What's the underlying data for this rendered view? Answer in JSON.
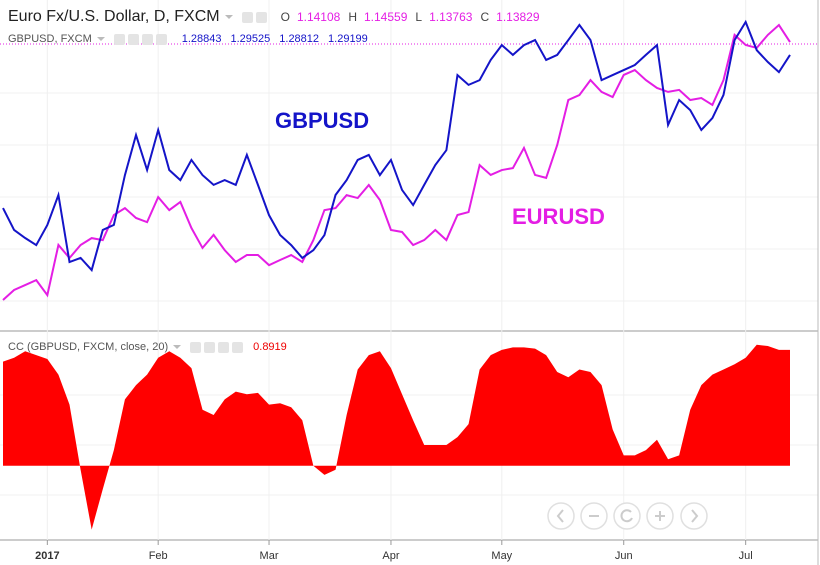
{
  "chart_data": [
    {
      "type": "line",
      "title": "Euro Fx/U.S. Dollar, D, FXCM",
      "ohlc": [
        {
          "label": "O",
          "value": 1.14108
        },
        {
          "label": "H",
          "value": 1.14559
        },
        {
          "label": "L",
          "value": 1.13763
        },
        {
          "label": "C",
          "value": 1.13829
        }
      ],
      "compare": {
        "title": "GBPUSD, FXCM",
        "values": [
          1.28843,
          1.29525,
          1.28812,
          1.29199
        ]
      },
      "ylim": [
        1.0219,
        1.1562
      ],
      "y2lim": [
        1.1983,
        1.3095
      ],
      "series": [
        {
          "name": "EURUSD",
          "color": "#e41ee4",
          "values": [
            1.0341,
            1.0382,
            1.0402,
            1.0422,
            1.0361,
            1.0565,
            1.0512,
            1.0565,
            1.0593,
            1.0585,
            1.0687,
            1.0715,
            1.0675,
            1.0658,
            1.076,
            1.0707,
            1.074,
            1.0634,
            1.0553,
            1.0606,
            1.0544,
            1.0496,
            1.0524,
            1.0524,
            1.0483,
            1.0504,
            1.0524,
            1.0496,
            1.0585,
            1.0707,
            1.0715,
            1.0768,
            1.0756,
            1.0809,
            1.0748,
            1.0626,
            1.0618,
            1.0565,
            1.0585,
            1.0626,
            1.0585,
            1.0687,
            1.0699,
            1.089,
            1.085,
            1.087,
            1.0878,
            1.096,
            1.085,
            1.0838,
            1.0972,
            1.1155,
            1.1175,
            1.1236,
            1.1188,
            1.1167,
            1.1257,
            1.1277,
            1.1236,
            1.1204,
            1.1188,
            1.1196,
            1.1155,
            1.1163,
            1.1135,
            1.1236,
            1.142,
            1.1379,
            1.1367,
            1.142,
            1.146,
            1.1391
          ]
        },
        {
          "name": "GBPUSD",
          "color": "#1414c8",
          "axis": "y2",
          "values": [
            1.2394,
            1.232,
            1.2293,
            1.2269,
            1.2337,
            1.2438,
            1.2212,
            1.2226,
            1.2185,
            1.232,
            1.2337,
            1.2505,
            1.264,
            1.2522,
            1.2657,
            1.2522,
            1.2488,
            1.2556,
            1.2505,
            1.2472,
            1.2488,
            1.2472,
            1.2573,
            1.2472,
            1.237,
            1.2303,
            1.2269,
            1.2226,
            1.2252,
            1.2303,
            1.2438,
            1.2488,
            1.2556,
            1.2573,
            1.2505,
            1.2556,
            1.2455,
            1.2404,
            1.2472,
            1.2539,
            1.2589,
            1.2842,
            1.2809,
            1.2825,
            1.2893,
            1.2943,
            1.291,
            1.2943,
            1.296,
            1.2893,
            1.291,
            1.296,
            1.3011,
            1.296,
            1.2825,
            1.2842,
            1.2859,
            1.2876,
            1.291,
            1.2943,
            1.2674,
            1.2758,
            1.2724,
            1.2657,
            1.2697,
            1.2775,
            1.296,
            1.3021,
            1.2926,
            1.2886,
            1.2852,
            1.291
          ]
        }
      ]
    },
    {
      "type": "area",
      "title": "CC (GBPUSD, FXCM, close, 20)",
      "last_value": 0.8919,
      "color": "#ff0000",
      "ylim": [
        -0.57,
        1.02
      ],
      "categories": [
        null,
        null,
        null,
        null,
        "2017",
        null,
        null,
        null,
        null,
        null,
        null,
        null,
        null,
        null,
        "Feb",
        null,
        null,
        null,
        null,
        null,
        null,
        null,
        null,
        null,
        "Mar",
        null,
        null,
        null,
        null,
        null,
        null,
        null,
        null,
        null,
        null,
        "Apr",
        null,
        null,
        null,
        null,
        null,
        null,
        null,
        null,
        null,
        "May",
        null,
        null,
        null,
        null,
        null,
        null,
        null,
        null,
        null,
        null,
        "Jun",
        null,
        null,
        null,
        null,
        null,
        null,
        null,
        null,
        null,
        null,
        "Jul",
        null,
        null,
        null,
        null
      ],
      "values": [
        0.8,
        0.83,
        0.88,
        0.85,
        0.82,
        0.7,
        0.47,
        -0.03,
        -0.49,
        -0.18,
        0.12,
        0.51,
        0.62,
        0.7,
        0.83,
        0.88,
        0.83,
        0.75,
        0.43,
        0.39,
        0.51,
        0.57,
        0.55,
        0.56,
        0.47,
        0.48,
        0.45,
        0.35,
        0.0,
        -0.07,
        -0.03,
        0.39,
        0.74,
        0.85,
        0.88,
        0.75,
        0.55,
        0.35,
        0.16,
        0.16,
        0.16,
        0.22,
        0.32,
        0.74,
        0.85,
        0.89,
        0.91,
        0.91,
        0.9,
        0.85,
        0.72,
        0.68,
        0.74,
        0.72,
        0.62,
        0.28,
        0.08,
        0.08,
        0.12,
        0.2,
        0.05,
        0.08,
        0.43,
        0.62,
        0.7,
        0.74,
        0.78,
        0.83,
        0.93,
        0.92,
        0.89,
        0.89
      ]
    }
  ]
}
